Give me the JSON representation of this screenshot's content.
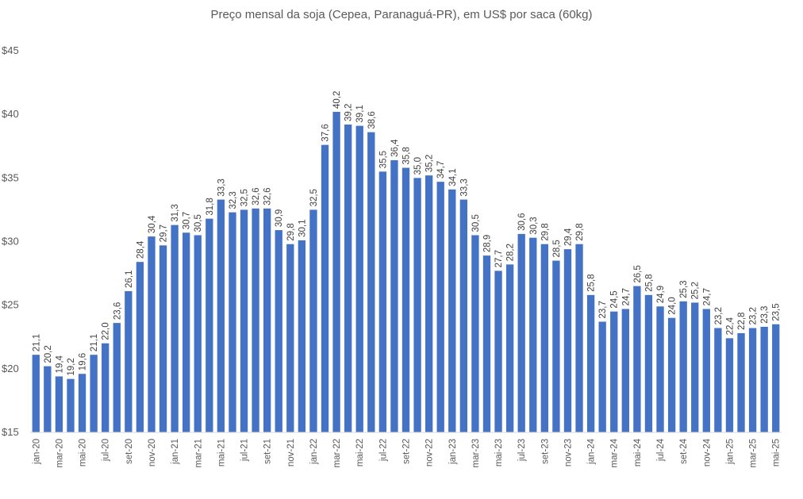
{
  "chart_data": {
    "type": "bar",
    "title": "Preço mensal da soja (Cepea, Paranaguá-PR), em US$ por saca (60kg)",
    "xlabel": "",
    "ylabel": "",
    "ylim": [
      15,
      45
    ],
    "yticks": [
      15,
      20,
      25,
      30,
      35,
      40,
      45
    ],
    "ytick_labels": [
      "$15",
      "$20",
      "$25",
      "$30",
      "$35",
      "$40",
      "$45"
    ],
    "grid": false,
    "bar_color": "#4472C4",
    "categories": [
      "jan-20",
      "fev-20",
      "mar-20",
      "abr-20",
      "mai-20",
      "jun-20",
      "jul-20",
      "ago-20",
      "set-20",
      "out-20",
      "nov-20",
      "dez-20",
      "jan-21",
      "fev-21",
      "mar-21",
      "abr-21",
      "mai-21",
      "jun-21",
      "jul-21",
      "ago-21",
      "set-21",
      "out-21",
      "nov-21",
      "dez-21",
      "jan-22",
      "fev-22",
      "mar-22",
      "abr-22",
      "mai-22",
      "jun-22",
      "jul-22",
      "ago-22",
      "set-22",
      "out-22",
      "nov-22",
      "dez-22",
      "jan-23",
      "fev-23",
      "mar-23",
      "abr-23",
      "mai-23",
      "jun-23",
      "jul-23",
      "ago-23",
      "set-23",
      "out-23",
      "nov-23",
      "dez-23",
      "jan-24",
      "fev-24",
      "mar-24",
      "abr-24",
      "mai-24",
      "jun-24",
      "jul-24",
      "ago-24",
      "set-24",
      "out-24",
      "nov-24",
      "dez-24",
      "jan-25",
      "fev-25",
      "mar-25",
      "abr-25",
      "mai-25"
    ],
    "values": [
      21.1,
      20.2,
      19.4,
      19.2,
      19.6,
      21.1,
      22.0,
      23.6,
      26.1,
      28.4,
      30.4,
      29.7,
      31.3,
      30.7,
      30.5,
      31.8,
      33.3,
      32.3,
      32.5,
      32.6,
      32.6,
      30.9,
      29.8,
      30.1,
      32.5,
      37.6,
      40.2,
      39.2,
      39.1,
      38.6,
      35.5,
      36.4,
      35.8,
      35.0,
      35.2,
      34.7,
      34.1,
      33.3,
      30.5,
      28.9,
      27.7,
      28.2,
      30.6,
      30.3,
      29.8,
      28.5,
      29.4,
      29.8,
      25.8,
      23.7,
      24.5,
      24.7,
      26.5,
      25.8,
      24.9,
      24.0,
      25.3,
      25.2,
      24.7,
      23.2,
      22.4,
      22.8,
      23.2,
      23.3,
      23.5
    ],
    "value_labels": [
      "21,1",
      "20,2",
      "19,4",
      "19,2",
      "19,6",
      "21,1",
      "22,0",
      "23,6",
      "26,1",
      "28,4",
      "30,4",
      "29,7",
      "31,3",
      "30,7",
      "30,5",
      "31,8",
      "33,3",
      "32,3",
      "32,5",
      "32,6",
      "32,6",
      "30,9",
      "29,8",
      "30,1",
      "32,5",
      "37,6",
      "40,2",
      "39,2",
      "39,1",
      "38,6",
      "35,5",
      "36,4",
      "35,8",
      "35,0",
      "35,2",
      "34,7",
      "34,1",
      "33,3",
      "30,5",
      "28,9",
      "27,7",
      "28,2",
      "30,6",
      "30,3",
      "29,8",
      "28,5",
      "29,4",
      "29,8",
      "25,8",
      "23,7",
      "24,5",
      "24,7",
      "26,5",
      "25,8",
      "24,9",
      "24,0",
      "25,3",
      "25,2",
      "24,7",
      "23,2",
      "22,4",
      "22,8",
      "23,2",
      "23,3",
      "23,5"
    ],
    "shown_tick_every": 2
  }
}
